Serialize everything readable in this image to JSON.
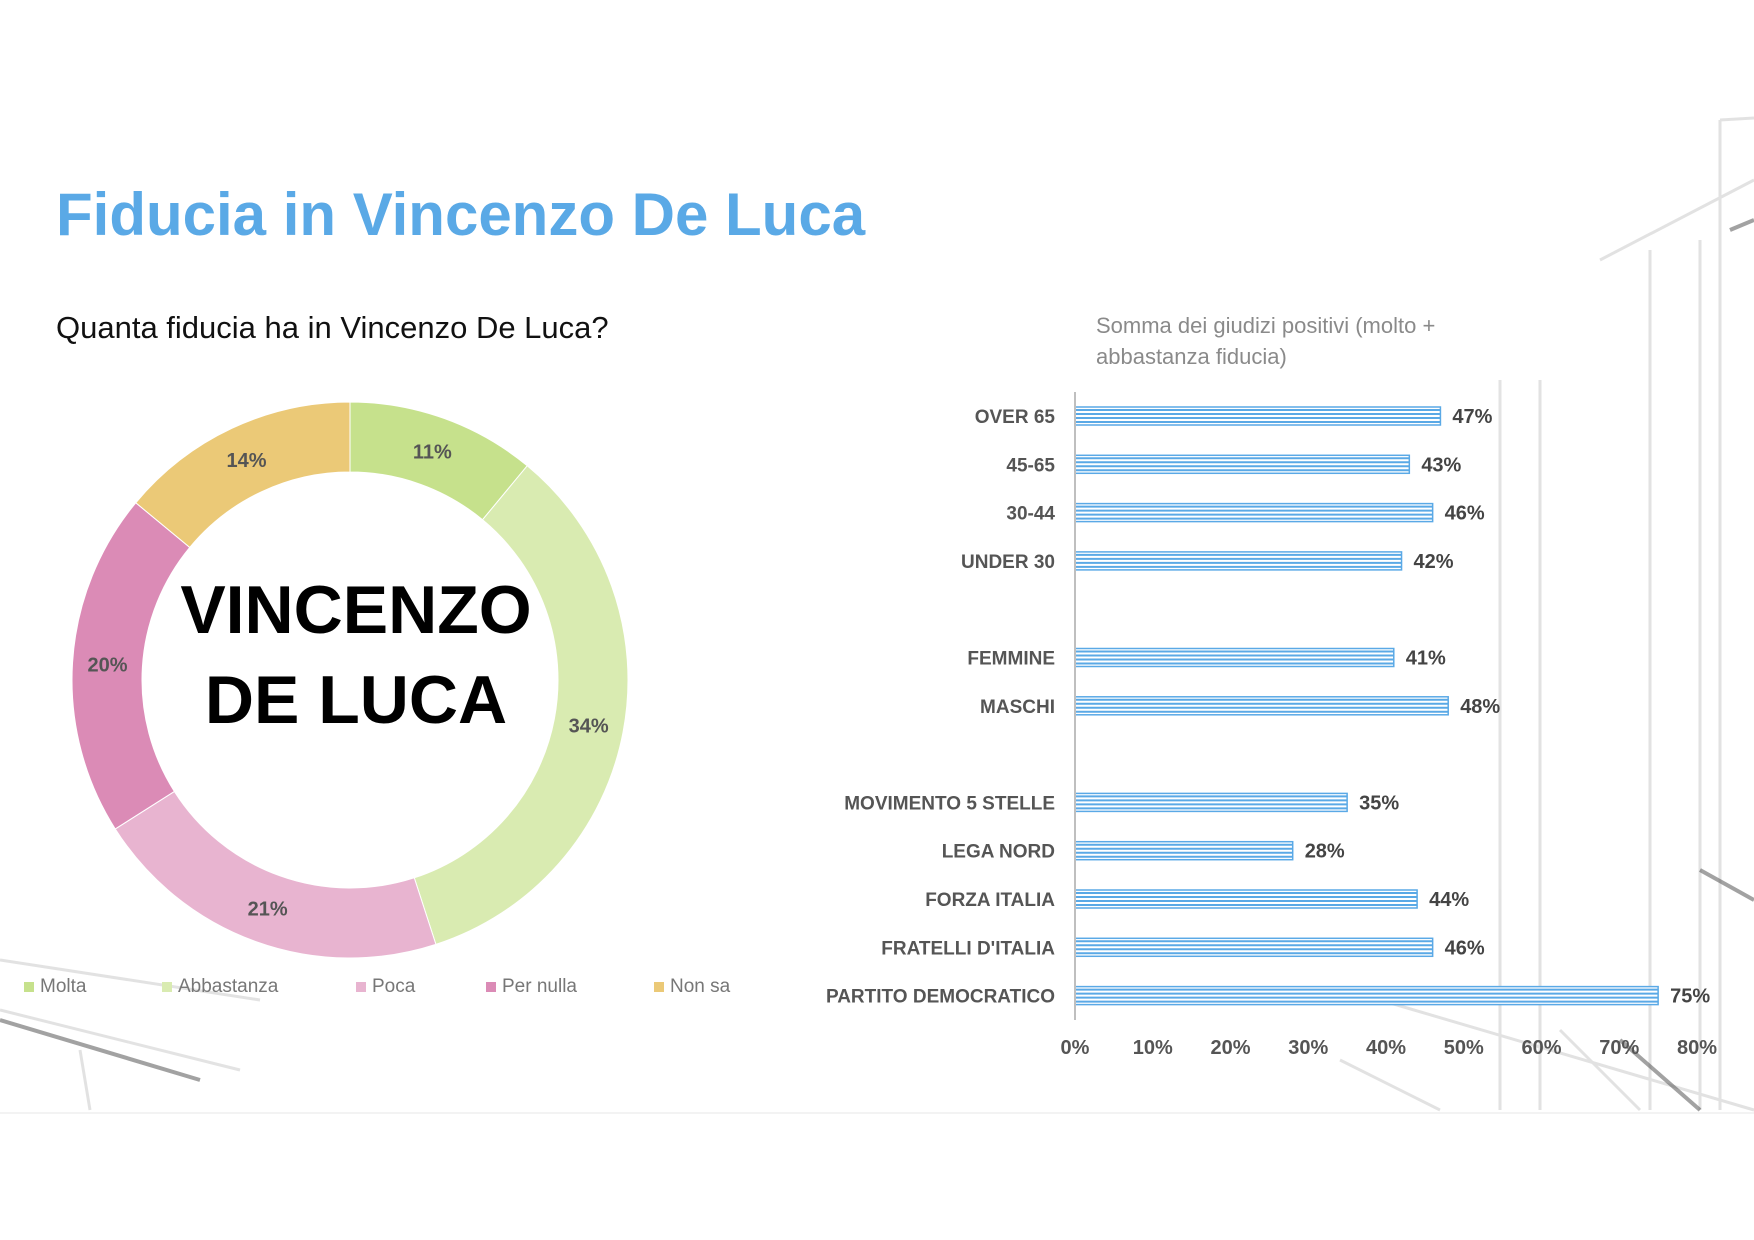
{
  "title": "Fiducia in Vincenzo De Luca",
  "subtitle": "Quanta fiducia ha in Vincenzo De Luca?",
  "center_label": [
    "VINCENZO",
    "DE LUCA"
  ],
  "chart_data": [
    {
      "type": "pie",
      "donut": true,
      "categories": [
        "Molta",
        "Abbastanza",
        "Poca",
        "Per nulla",
        "Non sa"
      ],
      "values": [
        11,
        34,
        21,
        20,
        14
      ],
      "labels": [
        "11%",
        "34%",
        "21%",
        "20%",
        "14%"
      ],
      "colors": [
        "#c6e18c",
        "#d9ebb1",
        "#e8b4d0",
        "#db8bb6",
        "#ebc977"
      ],
      "legend_position": "bottom"
    },
    {
      "type": "bar",
      "orientation": "horizontal",
      "title": "Somma dei giudizi positivi (molto + abbastanza fiducia)",
      "categories": [
        "OVER 65",
        "45-65",
        "30-44",
        "UNDER 30",
        "",
        "FEMMINE",
        "MASCHI",
        "",
        "MOVIMENTO 5 STELLE",
        "LEGA NORD",
        "FORZA ITALIA",
        "FRATELLI D'ITALIA",
        "PARTITO DEMOCRATICO"
      ],
      "values": [
        47,
        43,
        46,
        42,
        null,
        41,
        48,
        null,
        35,
        28,
        44,
        46,
        75
      ],
      "labels": [
        "47%",
        "43%",
        "46%",
        "42%",
        "",
        "41%",
        "48%",
        "",
        "35%",
        "28%",
        "44%",
        "46%",
        "75%"
      ],
      "xlim": [
        0,
        80
      ],
      "xticks": [
        "0%",
        "10%",
        "20%",
        "30%",
        "40%",
        "50%",
        "60%",
        "70%",
        "80%"
      ],
      "bar_color": "#5aa9e6",
      "grid": false
    }
  ]
}
